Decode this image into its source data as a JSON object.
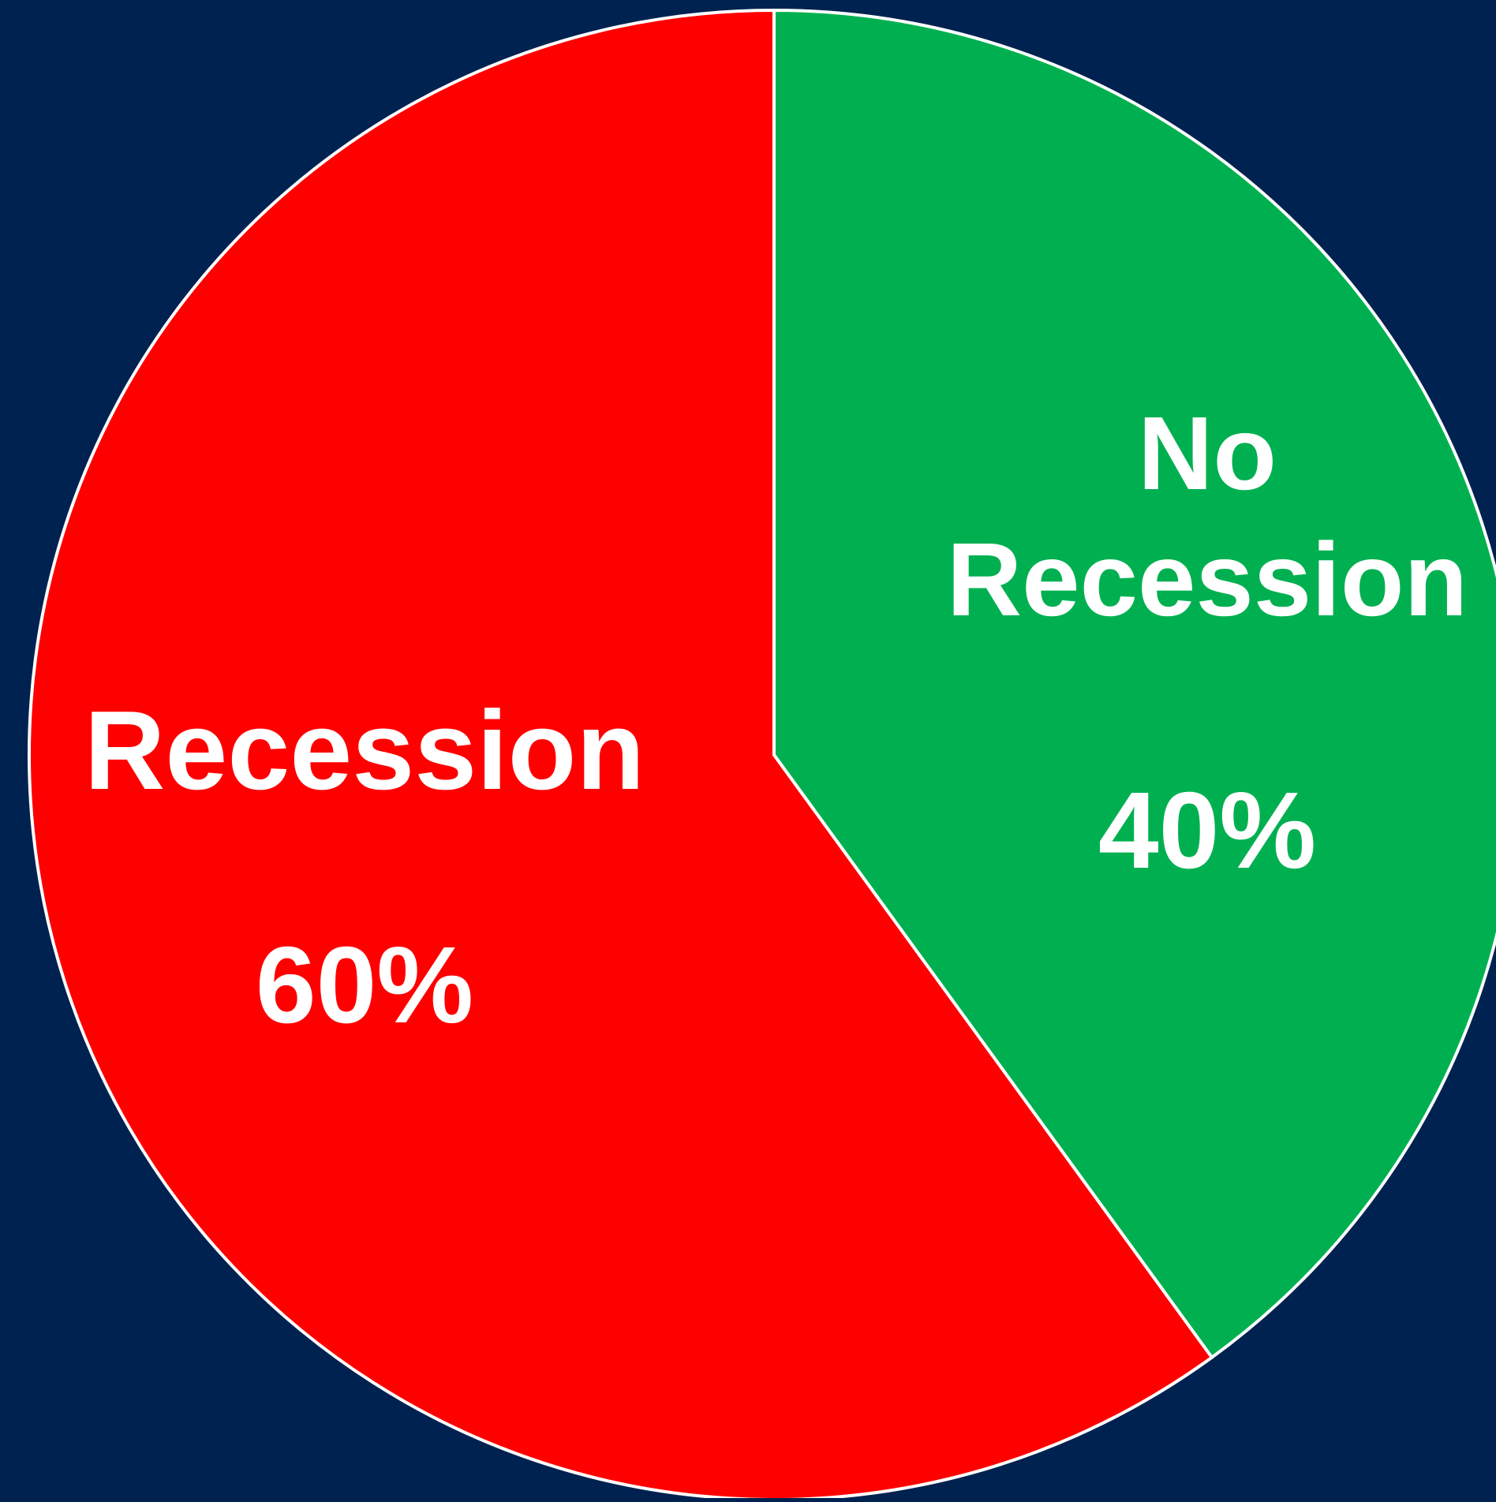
{
  "background_color": "#002250",
  "chart_data": {
    "type": "pie",
    "start_angle": "12 o'clock, clockwise",
    "slice_border_color": "#ffffff",
    "slices": [
      {
        "key": "no_recession",
        "label_lines": [
          "No",
          "Recession"
        ],
        "value_label": "40%",
        "value": 40,
        "color": "#00B050"
      },
      {
        "key": "recession",
        "label_lines": [
          "Recession"
        ],
        "value_label": "60%",
        "value": 60,
        "color": "#FF0000"
      }
    ]
  }
}
